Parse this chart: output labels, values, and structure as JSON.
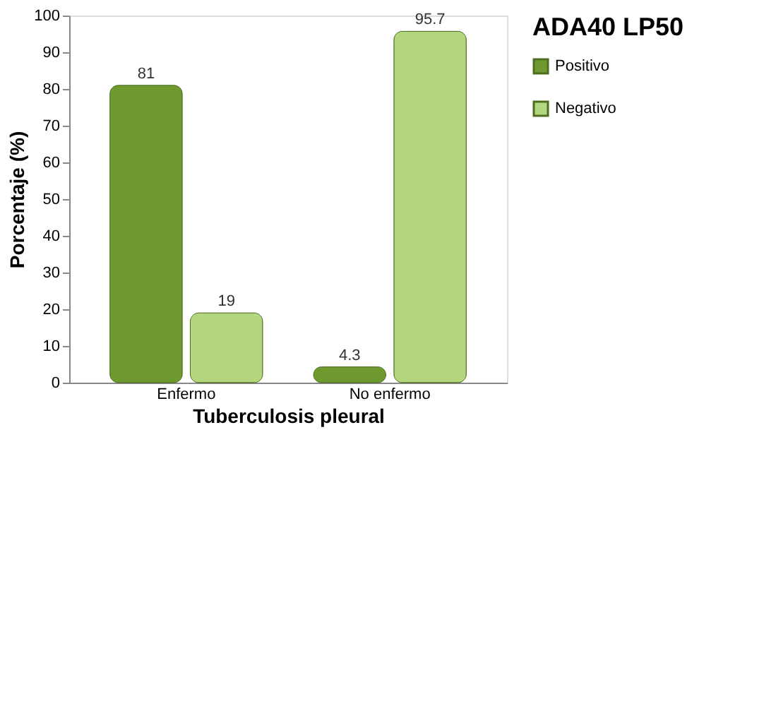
{
  "chart_data": {
    "type": "bar",
    "categories": [
      "Enfermo",
      "No enfermo"
    ],
    "series": [
      {
        "name": "Positivo",
        "color": "#6e9a2f",
        "values": [
          81,
          4.3
        ]
      },
      {
        "name": "Negativo",
        "color": "#b3d67f",
        "values": [
          19,
          95.7
        ]
      }
    ],
    "xlabel": "Tuberculosis pleural",
    "ylabel": "Porcentaje (%)",
    "legend_title": "ADA40 LP50",
    "ylim": [
      0,
      100
    ],
    "yticks": [
      0,
      10,
      20,
      30,
      40,
      50,
      60,
      70,
      80,
      90,
      100
    ],
    "data_labels": true,
    "grid": false,
    "legend": "right"
  }
}
